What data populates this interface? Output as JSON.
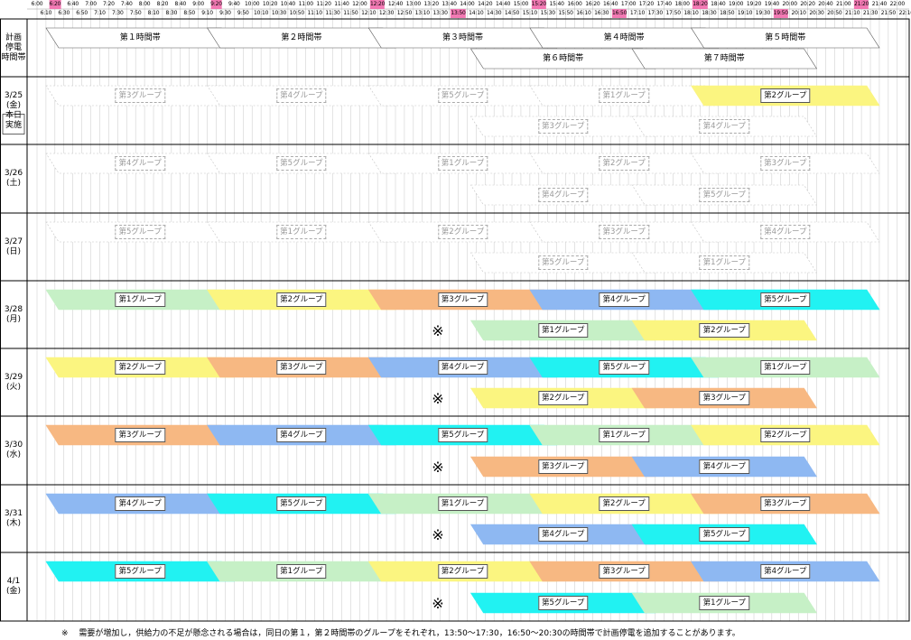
{
  "colors": {
    "第1グループ": "#c6f0c6",
    "第2グループ": "#fbf580",
    "第3グループ": "#f7b882",
    "第4グループ": "#8eb8f2",
    "第5グループ": "#21f2f2",
    "highlight": "#f279b3"
  },
  "header": {
    "top_times": [
      "6:00",
      "6:20",
      "6:40",
      "7:00",
      "7:20",
      "7:40",
      "8:00",
      "8:20",
      "8:40",
      "9:00",
      "9:20",
      "9:40",
      "10:00",
      "10:20",
      "10:40",
      "11:00",
      "11:20",
      "11:40",
      "12:00",
      "12:20",
      "12:40",
      "13:00",
      "13:20",
      "13:40",
      "14:00",
      "14:20",
      "14:40",
      "15:00",
      "15:20",
      "15:40",
      "16:00",
      "16:20",
      "16:40",
      "17:00",
      "17:20",
      "17:40",
      "18:00",
      "18:20",
      "18:40",
      "19:00",
      "19:20",
      "19:40",
      "20:00",
      "20:20",
      "20:40",
      "21:00",
      "21:20",
      "21:40",
      "22:00"
    ],
    "top_highlighted": [
      "6:20",
      "9:20",
      "12:20",
      "15:20",
      "18:20",
      "21:20"
    ],
    "bottom_times": [
      "6:10",
      "6:30",
      "6:50",
      "7:10",
      "7:30",
      "7:50",
      "8:10",
      "8:30",
      "8:50",
      "9:10",
      "9:30",
      "9:50",
      "10:10",
      "10:30",
      "10:50",
      "11:10",
      "11:30",
      "11:50",
      "12:10",
      "12:30",
      "12:50",
      "13:10",
      "13:30",
      "13:50",
      "14:10",
      "14:30",
      "14:50",
      "15:10",
      "15:30",
      "15:50",
      "16:10",
      "16:30",
      "16:50",
      "17:10",
      "17:30",
      "17:50",
      "18:10",
      "18:30",
      "18:50",
      "19:10",
      "19:30",
      "19:50",
      "20:10",
      "20:30",
      "20:50",
      "21:10",
      "21:30",
      "21:50",
      "22:10"
    ],
    "bottom_highlighted": [
      "13:50",
      "16:50",
      "19:50"
    ]
  },
  "rows": [
    {
      "label": "計画\n停電\n時間帯",
      "type": "timeslots",
      "upper": [
        {
          "label": "第１時間帯",
          "style": "outline"
        },
        {
          "label": "第２時間帯",
          "style": "outline"
        },
        {
          "label": "第３時間帯",
          "style": "outline"
        },
        {
          "label": "第４時間帯",
          "style": "outline"
        },
        {
          "label": "第５時間帯",
          "style": "outline"
        }
      ],
      "lower": [
        {
          "label": "第６時間帯",
          "style": "outline"
        },
        {
          "label": "第７時間帯",
          "style": "outline"
        }
      ]
    },
    {
      "label": "3/25\n(金)\n本日\n実施",
      "boxed": true,
      "upper": [
        {
          "label": "第3グループ",
          "style": "faded"
        },
        {
          "label": "第4グループ",
          "style": "faded"
        },
        {
          "label": "第5グループ",
          "style": "faded"
        },
        {
          "label": "第1グループ",
          "style": "faded"
        },
        {
          "label": "第2グループ",
          "style": "fill"
        }
      ],
      "lower": [
        {
          "label": "第3グループ",
          "style": "faded"
        },
        {
          "label": "第4グループ",
          "style": "faded"
        }
      ]
    },
    {
      "label": "3/26\n(土)",
      "upper": [
        {
          "label": "第4グループ",
          "style": "faded"
        },
        {
          "label": "第5グループ",
          "style": "faded"
        },
        {
          "label": "第1グループ",
          "style": "faded"
        },
        {
          "label": "第2グループ",
          "style": "faded"
        },
        {
          "label": "第3グループ",
          "style": "faded"
        }
      ],
      "lower": [
        {
          "label": "第4グループ",
          "style": "faded"
        },
        {
          "label": "第5グループ",
          "style": "faded"
        }
      ]
    },
    {
      "label": "3/27\n(日)",
      "upper": [
        {
          "label": "第5グループ",
          "style": "faded"
        },
        {
          "label": "第1グループ",
          "style": "faded"
        },
        {
          "label": "第2グループ",
          "style": "faded"
        },
        {
          "label": "第3グループ",
          "style": "faded"
        },
        {
          "label": "第4グループ",
          "style": "faded"
        }
      ],
      "lower": [
        {
          "label": "第5グループ",
          "style": "faded"
        },
        {
          "label": "第1グループ",
          "style": "faded"
        }
      ]
    },
    {
      "label": "3/28\n(月)",
      "mark": "※",
      "upper": [
        {
          "label": "第1グループ",
          "style": "fill"
        },
        {
          "label": "第2グループ",
          "style": "fill"
        },
        {
          "label": "第3グループ",
          "style": "fill"
        },
        {
          "label": "第4グループ",
          "style": "fill"
        },
        {
          "label": "第5グループ",
          "style": "fill"
        }
      ],
      "lower": [
        {
          "label": "第1グループ",
          "style": "fill"
        },
        {
          "label": "第2グループ",
          "style": "fill"
        }
      ]
    },
    {
      "label": "3/29\n(火)",
      "mark": "※",
      "upper": [
        {
          "label": "第2グループ",
          "style": "fill"
        },
        {
          "label": "第3グループ",
          "style": "fill"
        },
        {
          "label": "第4グループ",
          "style": "fill"
        },
        {
          "label": "第5グループ",
          "style": "fill"
        },
        {
          "label": "第1グループ",
          "style": "fill"
        }
      ],
      "lower": [
        {
          "label": "第2グループ",
          "style": "fill"
        },
        {
          "label": "第3グループ",
          "style": "fill"
        }
      ]
    },
    {
      "label": "3/30\n(水)",
      "mark": "※",
      "upper": [
        {
          "label": "第3グループ",
          "style": "fill"
        },
        {
          "label": "第4グループ",
          "style": "fill"
        },
        {
          "label": "第5グループ",
          "style": "fill"
        },
        {
          "label": "第1グループ",
          "style": "fill"
        },
        {
          "label": "第2グループ",
          "style": "fill"
        }
      ],
      "lower": [
        {
          "label": "第3グループ",
          "style": "fill"
        },
        {
          "label": "第4グループ",
          "style": "fill"
        }
      ]
    },
    {
      "label": "3/31\n(木)",
      "mark": "※",
      "upper": [
        {
          "label": "第4グループ",
          "style": "fill"
        },
        {
          "label": "第5グループ",
          "style": "fill"
        },
        {
          "label": "第1グループ",
          "style": "fill"
        },
        {
          "label": "第2グループ",
          "style": "fill"
        },
        {
          "label": "第3グループ",
          "style": "fill"
        }
      ],
      "lower": [
        {
          "label": "第4グループ",
          "style": "fill"
        },
        {
          "label": "第5グループ",
          "style": "fill"
        }
      ]
    },
    {
      "label": "4/1\n(金)",
      "mark": "※",
      "upper": [
        {
          "label": "第5グループ",
          "style": "fill"
        },
        {
          "label": "第1グループ",
          "style": "fill"
        },
        {
          "label": "第2グループ",
          "style": "fill"
        },
        {
          "label": "第3グループ",
          "style": "fill"
        },
        {
          "label": "第4グループ",
          "style": "fill"
        }
      ],
      "lower": [
        {
          "label": "第5グループ",
          "style": "fill"
        },
        {
          "label": "第1グループ",
          "style": "fill"
        }
      ]
    }
  ],
  "footnote": "※　 需要が増加し，供給力の不足が懸念される場合は，同日の第１，第２時間帯のグループをそれぞれ，13:50～17:30，16:50～20:30の時間帯で計画停電を追加することがあります。"
}
